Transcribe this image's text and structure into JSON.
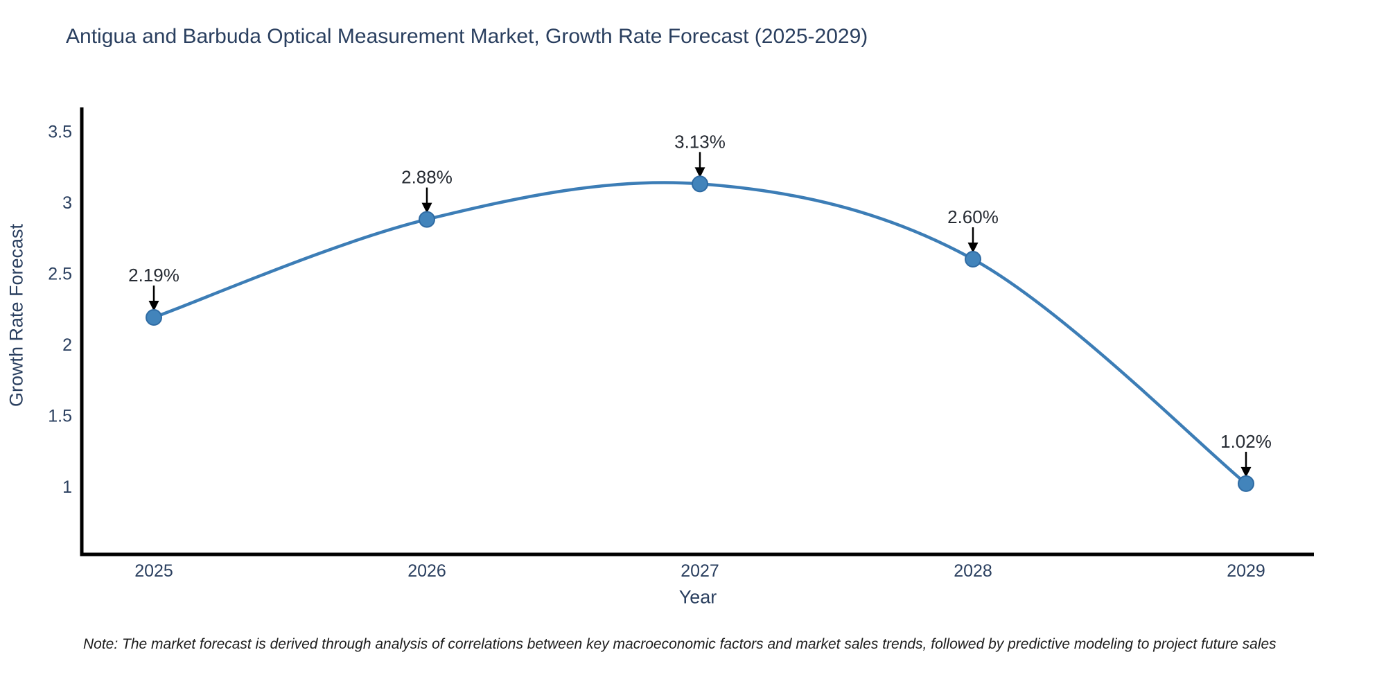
{
  "figure": {
    "title": "Antigua and Barbuda Optical Measurement Market, Growth Rate Forecast (2025-2029)",
    "note": "Note: The market forecast is derived through analysis of correlations between key macroeconomic factors and market sales trends, followed by predictive modeling to project future sales"
  },
  "chart_data": {
    "type": "line",
    "line_shape": "spline",
    "title": "Antigua and Barbuda Optical Measurement Market, Growth Rate Forecast (2025-2029)",
    "xlabel": "Year",
    "ylabel": "Growth Rate Forecast",
    "categories": [
      "2025",
      "2026",
      "2027",
      "2028",
      "2029"
    ],
    "series": [
      {
        "name": "Growth Rate Forecast",
        "values": [
          2.19,
          2.88,
          3.13,
          2.6,
          1.02
        ]
      }
    ],
    "data_labels": [
      "2.19%",
      "2.88%",
      "3.13%",
      "2.60%",
      "1.02%"
    ],
    "ytick_labels": [
      "1",
      "1.5",
      "2",
      "2.5",
      "3",
      "3.5"
    ],
    "ytick_values": [
      1,
      1.5,
      2,
      2.5,
      3,
      3.5
    ],
    "ylim": [
      0.52,
      3.67
    ],
    "grid": false,
    "legend_position": "none",
    "colors": {
      "line": "#3c7db6",
      "marker_fill": "#4284bb",
      "marker_edge": "#2f6ba3",
      "axis_line": "#000000",
      "tick_text": "#2a3f5f",
      "annotation_text": "#262b33",
      "annotation_arrow": "#000000",
      "title_text": "#2a3f5f"
    }
  }
}
